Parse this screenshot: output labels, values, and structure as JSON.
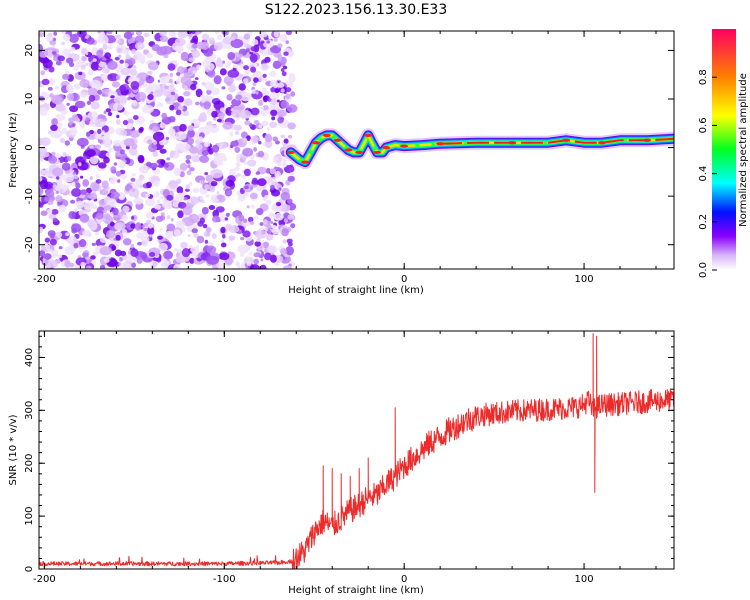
{
  "title": "S122.2023.156.13.30.E33",
  "chart_data": [
    {
      "type": "heatmap",
      "name": "spectrogram",
      "xlabel": "Height of straight line (km)",
      "ylabel": "Frequency (Hz)",
      "xlim": [
        -203,
        150
      ],
      "ylim": [
        -25,
        24
      ],
      "xticks": [
        -200,
        -100,
        0,
        100
      ],
      "yticks": [
        -20,
        -10,
        0,
        10,
        20
      ],
      "noise_region_x": [
        -203,
        -63
      ],
      "signal_track": [
        [
          -63,
          -1
        ],
        [
          -58,
          -2.5
        ],
        [
          -55,
          -3
        ],
        [
          -52,
          -1
        ],
        [
          -49,
          1
        ],
        [
          -46,
          2
        ],
        [
          -43,
          2.5
        ],
        [
          -40,
          2.5
        ],
        [
          -37,
          1.5
        ],
        [
          -34,
          0.5
        ],
        [
          -31,
          -0.5
        ],
        [
          -28,
          -1
        ],
        [
          -25,
          -1
        ],
        [
          -22,
          1
        ],
        [
          -20,
          2.5
        ],
        [
          -18,
          1
        ],
        [
          -15,
          -1
        ],
        [
          -12,
          -1
        ],
        [
          -10,
          0
        ],
        [
          -5,
          0.5
        ],
        [
          0,
          0.3
        ],
        [
          10,
          0.5
        ],
        [
          20,
          0.8
        ],
        [
          40,
          1
        ],
        [
          60,
          1
        ],
        [
          80,
          1
        ],
        [
          90,
          1.5
        ],
        [
          100,
          1
        ],
        [
          110,
          1
        ],
        [
          120,
          1.5
        ],
        [
          135,
          1.5
        ],
        [
          150,
          1.8
        ]
      ],
      "colorbar": {
        "label": "Normalized spectral amplitude",
        "range": [
          0,
          1
        ],
        "ticks": [
          "0.0",
          "0.2",
          "0.4",
          "0.6",
          "0.8"
        ]
      }
    },
    {
      "type": "line",
      "name": "snr",
      "xlabel": "Height of straight line (km)",
      "ylabel": "SNR (10 * v/v)",
      "xlim": [
        -203,
        150
      ],
      "ylim": [
        0,
        450
      ],
      "xticks": [
        -200,
        -100,
        0,
        100
      ],
      "yticks": [
        0,
        100,
        200,
        300,
        400
      ],
      "color": "#ee2b2b",
      "x": [
        -203,
        -150,
        -100,
        -70,
        -62,
        -55,
        -50,
        -45,
        -40,
        -35,
        -30,
        -25,
        -20,
        -15,
        -10,
        -5,
        0,
        5,
        10,
        15,
        20,
        25,
        30,
        35,
        40,
        45,
        50,
        55,
        60,
        70,
        80,
        90,
        95,
        100,
        102,
        105,
        107,
        110,
        120,
        130,
        140,
        150
      ],
      "values": [
        10,
        10,
        10,
        12,
        15,
        35,
        70,
        90,
        80,
        95,
        110,
        120,
        135,
        140,
        160,
        175,
        195,
        210,
        225,
        240,
        250,
        262,
        272,
        282,
        288,
        292,
        294,
        296,
        298,
        300,
        302,
        304,
        306,
        310,
        320,
        300,
        306,
        310,
        312,
        315,
        318,
        320
      ],
      "spikes": [
        {
          "x": -45,
          "y": 195
        },
        {
          "x": -40,
          "y": 190
        },
        {
          "x": -35,
          "y": 180
        },
        {
          "x": -30,
          "y": 175
        },
        {
          "x": -25,
          "y": 190
        },
        {
          "x": -20,
          "y": 210
        },
        {
          "x": -5,
          "y": 305
        },
        {
          "x": 105,
          "y": 445
        },
        {
          "x": 107,
          "y": 440
        },
        {
          "x": 106,
          "y": 145
        }
      ]
    }
  ]
}
